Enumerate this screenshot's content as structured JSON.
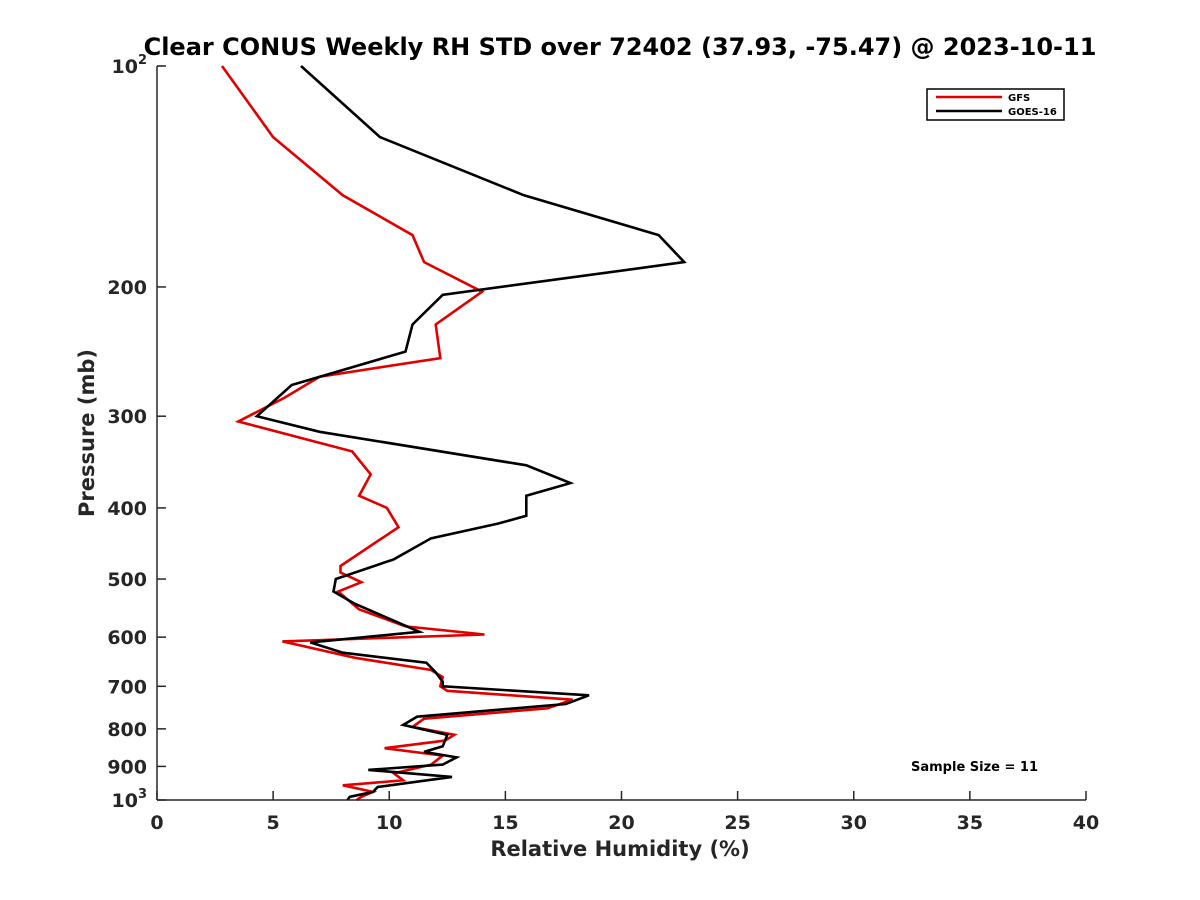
{
  "chart_data": {
    "type": "line",
    "title": "Clear CONUS Weekly RH STD over 72402 (37.93, -75.47) @ 2023-10-11",
    "xlabel": "Relative Humidity (%)",
    "ylabel": "Pressure (mb)",
    "xlim": [
      0,
      40
    ],
    "ylim": [
      100,
      1000
    ],
    "y_scale": "log",
    "y_direction": "reversed",
    "x_ticks": [
      0,
      5,
      10,
      15,
      20,
      25,
      30,
      35,
      40
    ],
    "x_tick_labels": [
      "0",
      "5",
      "10",
      "15",
      "20",
      "25",
      "30",
      "35",
      "40"
    ],
    "y_ticks": [
      200,
      300,
      400,
      500,
      600,
      700,
      800,
      900
    ],
    "y_tick_labels": [
      "200",
      "300",
      "400",
      "500",
      "600",
      "700",
      "800",
      "900"
    ],
    "y_power_ticks": [
      {
        "value": 100,
        "base": "10",
        "exp": "2"
      },
      {
        "value": 1000,
        "base": "10",
        "exp": "3"
      }
    ],
    "legend_position": "top-right",
    "annotation": "Sample Size = 11",
    "series": [
      {
        "name": "GFS",
        "color": "#e00000",
        "points": [
          [
            2.8,
            100
          ],
          [
            5.0,
            125
          ],
          [
            8.0,
            150
          ],
          [
            11.0,
            170
          ],
          [
            11.5,
            185
          ],
          [
            14.0,
            203
          ],
          [
            12.0,
            225
          ],
          [
            12.2,
            250
          ],
          [
            7.0,
            265
          ],
          [
            5.5,
            283
          ],
          [
            3.5,
            305
          ],
          [
            8.4,
            335
          ],
          [
            9.2,
            360
          ],
          [
            9.0,
            370
          ],
          [
            8.7,
            385
          ],
          [
            9.9,
            400
          ],
          [
            10.4,
            425
          ],
          [
            7.9,
            480
          ],
          [
            7.9,
            490
          ],
          [
            8.8,
            505
          ],
          [
            7.8,
            520
          ],
          [
            8.7,
            550
          ],
          [
            10.7,
            580
          ],
          [
            14.1,
            595
          ],
          [
            5.4,
            608
          ],
          [
            8.5,
            640
          ],
          [
            11.8,
            665
          ],
          [
            12.3,
            680
          ],
          [
            12.2,
            700
          ],
          [
            12.5,
            710
          ],
          [
            17.9,
            730
          ],
          [
            16.8,
            750
          ],
          [
            11.5,
            775
          ],
          [
            11.0,
            795
          ],
          [
            12.8,
            815
          ],
          [
            12.4,
            830
          ],
          [
            9.8,
            850
          ],
          [
            12.3,
            870
          ],
          [
            11.8,
            895
          ],
          [
            10.2,
            920
          ],
          [
            10.6,
            940
          ],
          [
            8.0,
            955
          ],
          [
            9.3,
            975
          ],
          [
            8.8,
            990
          ],
          [
            8.6,
            1000
          ]
        ]
      },
      {
        "name": "GOES-16",
        "color": "#000000",
        "points": [
          [
            6.2,
            100
          ],
          [
            9.6,
            125
          ],
          [
            15.8,
            150
          ],
          [
            21.6,
            170
          ],
          [
            22.7,
            185
          ],
          [
            12.3,
            205
          ],
          [
            11.0,
            225
          ],
          [
            10.7,
            245
          ],
          [
            5.8,
            272
          ],
          [
            4.3,
            300
          ],
          [
            7.0,
            315
          ],
          [
            15.9,
            350
          ],
          [
            17.8,
            370
          ],
          [
            15.9,
            385
          ],
          [
            15.9,
            410
          ],
          [
            14.7,
            420
          ],
          [
            11.8,
            440
          ],
          [
            10.2,
            470
          ],
          [
            7.7,
            500
          ],
          [
            7.6,
            520
          ],
          [
            8.5,
            540
          ],
          [
            11.3,
            590
          ],
          [
            6.6,
            610
          ],
          [
            8.0,
            630
          ],
          [
            11.6,
            650
          ],
          [
            12.0,
            670
          ],
          [
            12.3,
            690
          ],
          [
            12.3,
            700
          ],
          [
            18.6,
            720
          ],
          [
            17.6,
            740
          ],
          [
            11.2,
            770
          ],
          [
            10.6,
            790
          ],
          [
            12.5,
            815
          ],
          [
            12.3,
            845
          ],
          [
            11.5,
            860
          ],
          [
            12.9,
            875
          ],
          [
            12.3,
            895
          ],
          [
            9.1,
            910
          ],
          [
            12.7,
            930
          ],
          [
            9.5,
            960
          ],
          [
            9.3,
            975
          ],
          [
            8.3,
            990
          ],
          [
            8.2,
            1000
          ]
        ]
      }
    ]
  }
}
